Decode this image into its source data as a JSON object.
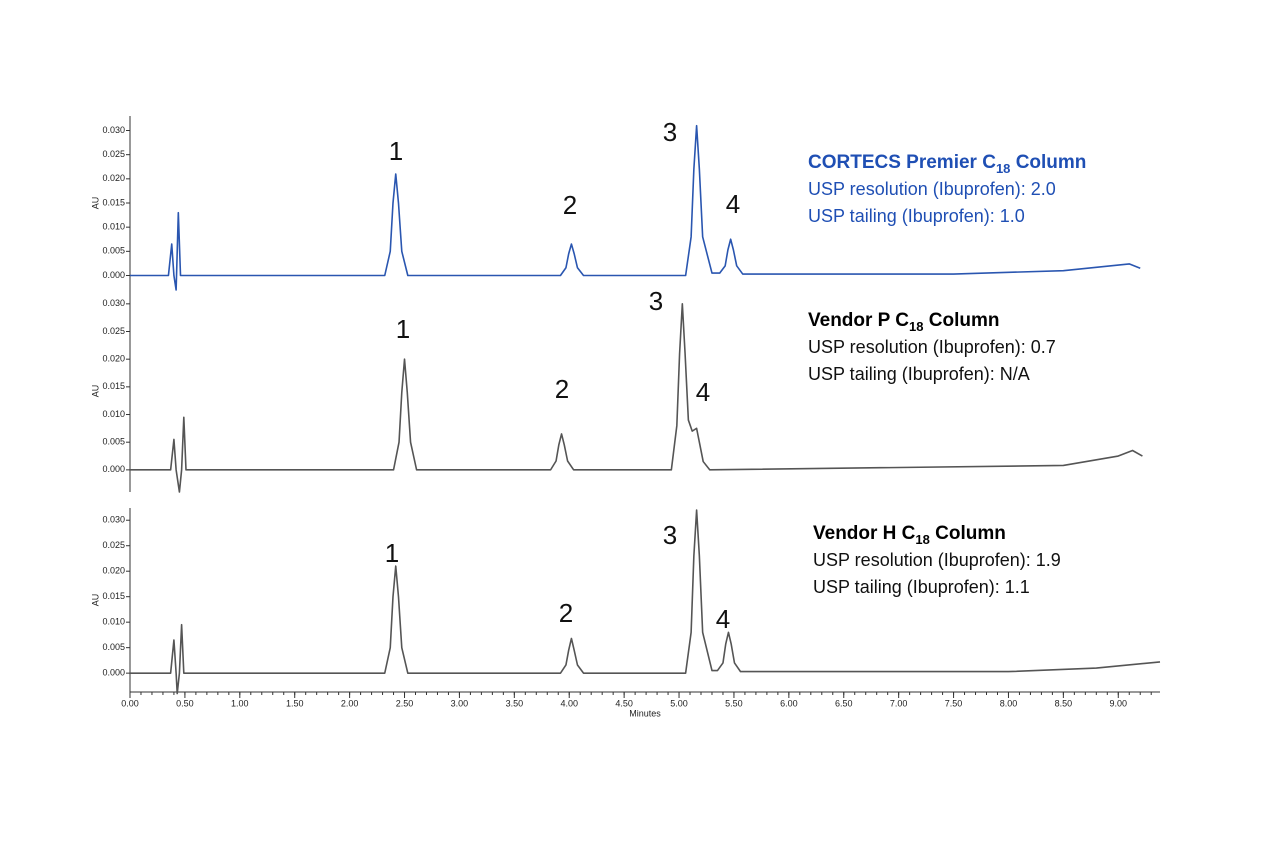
{
  "chart_data": [
    {
      "type": "line",
      "title": {
        "main": "CORTECS Premier C",
        "sub": "18",
        "rest": " Column"
      },
      "info": [
        "USP resolution (Ibuprofen): 2.0",
        "USP tailing (Ibuprofen): 1.0"
      ],
      "ylabel": "AU",
      "color": "#2a56b0",
      "title_color": "#1f4fb4",
      "peak_labels": [
        "1",
        "2",
        "3",
        "4"
      ],
      "xlim": [
        0,
        9.38
      ],
      "ylim": [
        -0.003,
        0.033
      ],
      "yticks": [
        {
          "value": 0,
          "label": "0.000"
        },
        {
          "value": 0.005,
          "label": "0.005"
        },
        {
          "value": 0.01,
          "label": "0.010"
        },
        {
          "value": 0.015,
          "label": "0.015"
        },
        {
          "value": 0.02,
          "label": "0.020"
        },
        {
          "value": 0.025,
          "label": "0.025"
        },
        {
          "value": 0.03,
          "label": "0.030"
        }
      ],
      "x": [
        0,
        0.35,
        0.38,
        0.4,
        0.42,
        0.44,
        0.46,
        2.32,
        2.37,
        2.395,
        2.42,
        2.445,
        2.475,
        2.53,
        3.92,
        3.97,
        3.995,
        4.02,
        4.045,
        4.075,
        4.13,
        5.06,
        5.11,
        5.135,
        5.16,
        5.185,
        5.215,
        5.3,
        5.37,
        5.42,
        5.445,
        5.47,
        5.495,
        5.525,
        5.58,
        7.5,
        8.5,
        9.1,
        9.2
      ],
      "values": [
        0,
        0,
        0.0065,
        0,
        -0.003,
        0.013,
        0,
        0,
        0.005,
        0.015,
        0.021,
        0.015,
        0.005,
        0,
        0,
        0.0016,
        0.0045,
        0.0065,
        0.0045,
        0.0016,
        0,
        0,
        0.008,
        0.022,
        0.031,
        0.022,
        0.008,
        0.0005,
        0.0005,
        0.002,
        0.0053,
        0.0075,
        0.0053,
        0.002,
        0.0003,
        0.0003,
        0.001,
        0.0024,
        0.0015
      ]
    },
    {
      "type": "line",
      "title": {
        "main": "Vendor P C",
        "sub": "18",
        "rest": " Column"
      },
      "info": [
        "USP resolution (Ibuprofen): 0.7",
        "USP tailing (Ibuprofen): N/A"
      ],
      "ylabel": "AU",
      "color": "#555555",
      "title_color": "#000000",
      "peak_labels": [
        "1",
        "2",
        "3",
        "4"
      ],
      "xlim": [
        0,
        9.38
      ],
      "ylim": [
        -0.004,
        0.0325
      ],
      "yticks": [
        {
          "value": 0,
          "label": "0.000"
        },
        {
          "value": 0.005,
          "label": "0.005"
        },
        {
          "value": 0.01,
          "label": "0.010"
        },
        {
          "value": 0.015,
          "label": "0.015"
        },
        {
          "value": 0.02,
          "label": "0.020"
        },
        {
          "value": 0.025,
          "label": "0.025"
        },
        {
          "value": 0.03,
          "label": "0.030"
        }
      ],
      "x": [
        0,
        0.37,
        0.4,
        0.42,
        0.45,
        0.47,
        0.49,
        0.51,
        2.4,
        2.45,
        2.475,
        2.5,
        2.525,
        2.555,
        2.61,
        3.83,
        3.88,
        3.905,
        3.93,
        3.955,
        3.985,
        4.04,
        4.93,
        4.98,
        5.005,
        5.03,
        5.055,
        5.085,
        5.12,
        5.16,
        5.185,
        5.22,
        5.28,
        8.5,
        9.0,
        9.13,
        9.22
      ],
      "values": [
        0,
        0,
        0.0055,
        0,
        -0.004,
        0,
        0.0095,
        0,
        0,
        0.005,
        0.014,
        0.02,
        0.014,
        0.005,
        0,
        0,
        0.0016,
        0.0045,
        0.0065,
        0.0045,
        0.0016,
        0,
        0,
        0.008,
        0.021,
        0.03,
        0.021,
        0.009,
        0.007,
        0.0075,
        0.005,
        0.0015,
        0,
        0.0008,
        0.0025,
        0.0035,
        0.0025
      ]
    },
    {
      "type": "line",
      "title": {
        "main": "Vendor H C",
        "sub": "18",
        "rest": " Column"
      },
      "info": [
        "USP resolution (Ibuprofen): 1.9",
        "USP tailing (Ibuprofen): 1.1"
      ],
      "ylabel": "AU",
      "color": "#555555",
      "title_color": "#000000",
      "peak_labels": [
        "1",
        "2",
        "3",
        "4"
      ],
      "xlabel": "Minutes",
      "xlim": [
        0,
        9.38
      ],
      "ylim": [
        -0.0037,
        0.0324
      ],
      "yticks": [
        {
          "value": 0,
          "label": "0.000"
        },
        {
          "value": 0.005,
          "label": "0.005"
        },
        {
          "value": 0.01,
          "label": "0.010"
        },
        {
          "value": 0.015,
          "label": "0.015"
        },
        {
          "value": 0.02,
          "label": "0.020"
        },
        {
          "value": 0.025,
          "label": "0.025"
        },
        {
          "value": 0.03,
          "label": "0.030"
        }
      ],
      "xticks": [
        {
          "value": 0,
          "label": "0.00"
        },
        {
          "value": 0.5,
          "label": "0.50"
        },
        {
          "value": 1,
          "label": "1.00"
        },
        {
          "value": 1.5,
          "label": "1.50"
        },
        {
          "value": 2,
          "label": "2.00"
        },
        {
          "value": 2.5,
          "label": "2.50"
        },
        {
          "value": 3,
          "label": "3.00"
        },
        {
          "value": 3.5,
          "label": "3.50"
        },
        {
          "value": 4,
          "label": "4.00"
        },
        {
          "value": 4.5,
          "label": "4.50"
        },
        {
          "value": 5,
          "label": "5.00"
        },
        {
          "value": 5.5,
          "label": "5.50"
        },
        {
          "value": 6,
          "label": "6.00"
        },
        {
          "value": 6.5,
          "label": "6.50"
        },
        {
          "value": 7,
          "label": "7.00"
        },
        {
          "value": 7.5,
          "label": "7.50"
        },
        {
          "value": 8,
          "label": "8.00"
        },
        {
          "value": 8.5,
          "label": "8.50"
        },
        {
          "value": 9,
          "label": "9.00"
        }
      ],
      "x": [
        0,
        0.37,
        0.4,
        0.42,
        0.43,
        0.45,
        0.47,
        0.49,
        2.32,
        2.37,
        2.395,
        2.42,
        2.445,
        2.475,
        2.53,
        3.92,
        3.97,
        3.995,
        4.02,
        4.045,
        4.075,
        4.13,
        5.06,
        5.11,
        5.135,
        5.16,
        5.185,
        5.215,
        5.3,
        5.35,
        5.4,
        5.425,
        5.45,
        5.475,
        5.505,
        5.56,
        8.0,
        8.8,
        9.38
      ],
      "values": [
        0,
        0,
        0.0065,
        0,
        -0.004,
        0,
        0.0095,
        0,
        0,
        0.005,
        0.015,
        0.021,
        0.015,
        0.005,
        0,
        0,
        0.0016,
        0.0045,
        0.0068,
        0.0045,
        0.0016,
        0,
        0,
        0.008,
        0.023,
        0.032,
        0.023,
        0.008,
        0.0005,
        0.0005,
        0.002,
        0.0057,
        0.008,
        0.0057,
        0.002,
        0.0003,
        0.0003,
        0.001,
        0.0022
      ]
    }
  ]
}
